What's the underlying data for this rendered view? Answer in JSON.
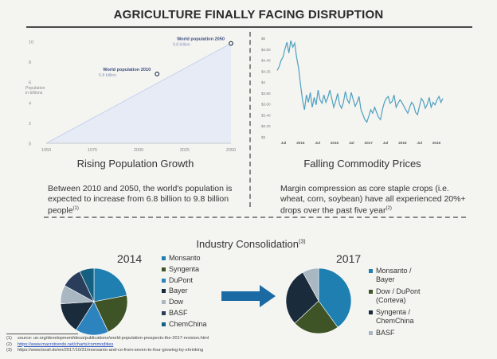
{
  "title": "AGRICULTURE FINALLY FACING DISRUPTION",
  "left_panel": {
    "subheading": "Rising Population Growth",
    "description": "Between 2010 and 2050, the world's population is expected to increase from 6.8 billion to 9.8 billion people",
    "description_sup": "(1)"
  },
  "right_panel": {
    "subheading": "Falling Commodity Prices",
    "description": "Margin compression as core staple crops (i.e. wheat, corn, soybean) have all experienced 20%+ drops over the past five year",
    "description_sup": "(2)"
  },
  "consolidation": {
    "heading": "Industry Consolidation",
    "heading_sup": "(3)",
    "year_2014": "2014",
    "year_2017": "2017"
  },
  "colors": {
    "area": "#e6ebf6",
    "line": "#4fa0bf",
    "monsanto": "#1e7fb0",
    "syngenta": "#3e5426",
    "dupont": "#2d83bd",
    "bayer": "#1a2b3c",
    "dow": "#a9b7c2",
    "basf": "#2a3e5c",
    "chemchina": "#155f80",
    "arrow": "#1c6aa3"
  },
  "chart_data": [
    {
      "type": "area",
      "ylabel": "Population in billions",
      "x": [
        1950,
        2050
      ],
      "y": [
        2.5,
        9.8
      ],
      "xticks": [
        "1950",
        "1975",
        "2000",
        "2025",
        "2050"
      ],
      "yticks": [
        "0",
        "2",
        "4",
        "6",
        "8",
        "10"
      ],
      "ylim": [
        0,
        10
      ],
      "xlim": [
        1950,
        2050
      ],
      "annotations": [
        {
          "x": 2010,
          "y": 6.8,
          "label": "World population 2010",
          "value": "6.8 billion"
        },
        {
          "x": 2050,
          "y": 9.8,
          "label": "World population 2050",
          "value": "9.8 billion"
        }
      ]
    },
    {
      "type": "line",
      "ylabel": "",
      "yticks": [
        "$5",
        "$4.80",
        "$4.40",
        "$4.25",
        "$4",
        "$3.80",
        "$3.60",
        "$3.40",
        "$3.20",
        "$3"
      ],
      "xticks": [
        "Jul",
        "2015",
        "Jul",
        "2016",
        "Jul",
        "2017",
        "Jul",
        "2018",
        "Jul",
        "2019"
      ],
      "ylim": [
        3,
        5
      ],
      "values": [
        4.35,
        4.42,
        4.55,
        4.62,
        4.78,
        4.92,
        4.7,
        4.95,
        4.82,
        4.9,
        4.6,
        4.4,
        4.05,
        3.75,
        3.55,
        3.85,
        3.7,
        3.9,
        3.6,
        3.8,
        3.65,
        3.95,
        3.75,
        3.68,
        3.85,
        3.7,
        3.8,
        3.95,
        3.78,
        3.6,
        3.72,
        3.88,
        3.66,
        3.58,
        3.7,
        3.92,
        3.75,
        3.68,
        3.9,
        3.76,
        3.62,
        3.7,
        3.82,
        3.55,
        3.45,
        3.35,
        3.3,
        3.42,
        3.55,
        3.48,
        3.6,
        3.5,
        3.4,
        3.35,
        3.55,
        3.7,
        3.78,
        3.82,
        3.68,
        3.72,
        3.85,
        3.6,
        3.68,
        3.75,
        3.7,
        3.62,
        3.55,
        3.48,
        3.6,
        3.7,
        3.65,
        3.5,
        3.45,
        3.62,
        3.78,
        3.72,
        3.58,
        3.66,
        3.8,
        3.6,
        3.7,
        3.65,
        3.75,
        3.82,
        3.7,
        3.78
      ]
    },
    {
      "type": "pie",
      "title": "2014",
      "categories": [
        "Monsanto",
        "Syngenta",
        "DuPont",
        "Bayer",
        "Dow",
        "BASF",
        "ChemChina"
      ],
      "values": [
        22,
        21,
        16,
        15,
        9,
        10,
        7
      ]
    },
    {
      "type": "pie",
      "title": "2017",
      "categories": [
        "Monsanto / Bayer",
        "Dow / DuPont (Corteva)",
        "Syngenta / ChemChina",
        "BASF"
      ],
      "values": [
        40,
        23,
        29,
        8
      ]
    }
  ],
  "footnotes": [
    {
      "num": "(1)",
      "text": "source: un.org/development/desa/publications/world-population-prospects-the-2017-revision.html",
      "link": false
    },
    {
      "num": "(2)",
      "text": "https://www.macrotrends.net/charts/commodities",
      "link": true
    },
    {
      "num": "(3)",
      "text": "https://www.bosil.de/en/2017/10/31/monsanto-and-co-from-seven-to-four-growing-by-shrinking",
      "link": false
    }
  ]
}
